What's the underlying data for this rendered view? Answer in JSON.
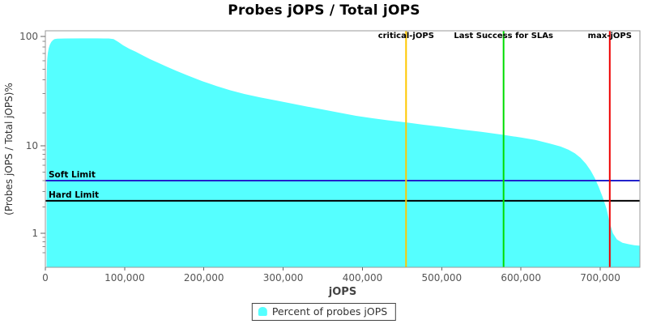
{
  "title": "Probes jOPS / Total jOPS",
  "legend": {
    "label": "Percent of probes jOPS",
    "marker_color": "#55FFFF"
  },
  "chart_data": {
    "type": "area",
    "title": "Probes jOPS / Total jOPS",
    "xlabel": "jOPS",
    "ylabel": "(Probes jOPS / Total jOPS)%",
    "x_range": [
      0,
      750000
    ],
    "y_scale": "log",
    "ylim": [
      0.55,
      115
    ],
    "grid": false,
    "x_ticks": [
      {
        "v": 0,
        "label": "0"
      },
      {
        "v": 100000,
        "label": "100,000"
      },
      {
        "v": 200000,
        "label": "200,000"
      },
      {
        "v": 300000,
        "label": "300,000"
      },
      {
        "v": 400000,
        "label": "400,000"
      },
      {
        "v": 500000,
        "label": "500,000"
      },
      {
        "v": 600000,
        "label": "600,000"
      },
      {
        "v": 700000,
        "label": "700,000"
      }
    ],
    "y_ticks": [
      {
        "v": 100,
        "label": "100"
      },
      {
        "v": 10,
        "label": "10"
      },
      {
        "v": 1,
        "label": "1"
      }
    ],
    "y_minor_ticks": [
      90,
      80,
      70,
      60,
      50,
      40,
      30,
      20,
      9,
      8,
      7,
      6,
      5,
      4,
      3,
      2,
      0.9,
      0.8,
      0.7,
      0.6
    ],
    "series": [
      {
        "name": "Percent of probes jOPS",
        "color": "#55FFFF",
        "points": [
          [
            1500,
            36
          ],
          [
            1900,
            50
          ],
          [
            2400,
            62
          ],
          [
            3200,
            71
          ],
          [
            4200,
            78
          ],
          [
            5600,
            84
          ],
          [
            7500,
            89
          ],
          [
            9500,
            92.5
          ],
          [
            11500,
            94.5
          ],
          [
            15000,
            95.3
          ],
          [
            25000,
            95.8
          ],
          [
            45000,
            96.0
          ],
          [
            65000,
            96.0
          ],
          [
            80000,
            95.8
          ],
          [
            86000,
            94.5
          ],
          [
            92000,
            89
          ],
          [
            98000,
            83
          ],
          [
            106000,
            77
          ],
          [
            114000,
            72.5
          ],
          [
            123000,
            67
          ],
          [
            132000,
            62
          ],
          [
            142000,
            57.5
          ],
          [
            153000,
            53
          ],
          [
            165000,
            48.5
          ],
          [
            180000,
            43.8
          ],
          [
            198000,
            39
          ],
          [
            216000,
            35.2
          ],
          [
            233000,
            32.2
          ],
          [
            251000,
            29.8
          ],
          [
            271000,
            27.7
          ],
          [
            291000,
            26
          ],
          [
            311000,
            24.3
          ],
          [
            331000,
            22.8
          ],
          [
            351000,
            21.4
          ],
          [
            371000,
            20.1
          ],
          [
            392000,
            18.8
          ],
          [
            412000,
            17.9
          ],
          [
            432000,
            17.1
          ],
          [
            454000,
            16.4
          ],
          [
            476000,
            15.6
          ],
          [
            500000,
            14.9
          ],
          [
            525000,
            14.1
          ],
          [
            550000,
            13.4
          ],
          [
            577000,
            12.6
          ],
          [
            600000,
            11.9
          ],
          [
            618000,
            11.3
          ],
          [
            636000,
            10.5
          ],
          [
            650000,
            9.8
          ],
          [
            660000,
            9.0
          ],
          [
            668000,
            8.2
          ],
          [
            675000,
            7.3
          ],
          [
            682000,
            6.2
          ],
          [
            688000,
            5.2
          ],
          [
            693000,
            4.3
          ],
          [
            698000,
            3.4
          ],
          [
            703000,
            2.6
          ],
          [
            708000,
            1.9
          ],
          [
            712000,
            1.3
          ],
          [
            716000,
            1.0
          ],
          [
            721000,
            0.85
          ],
          [
            728000,
            0.78
          ],
          [
            736000,
            0.75
          ],
          [
            743000,
            0.73
          ],
          [
            750000,
            0.72
          ]
        ]
      }
    ],
    "vertical_markers": [
      {
        "label": "critical-jOPS",
        "x": 455000,
        "color": "#FFC800"
      },
      {
        "label": "Last Success for SLAs",
        "x": 578000,
        "color": "#00DD00"
      },
      {
        "label": "max-jOPS",
        "x": 712000,
        "color": "#EE0000"
      }
    ],
    "horizontal_limits": [
      {
        "label": "Soft Limit",
        "y": 4.0,
        "color": "#2222CC"
      },
      {
        "label": "Hard Limit",
        "y": 2.35,
        "color": "#000000"
      }
    ],
    "legend": {
      "position": "bottom",
      "entries": [
        {
          "label": "Percent of probes jOPS",
          "color": "#55FFFF"
        }
      ]
    }
  }
}
